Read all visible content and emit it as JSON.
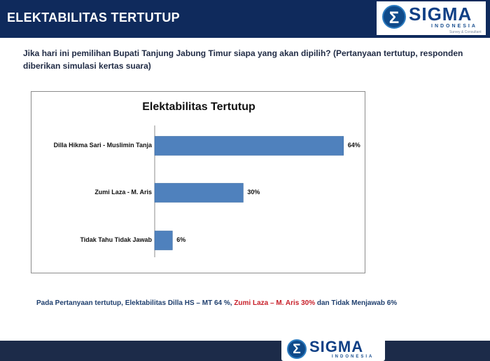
{
  "header": {
    "title": "ELEKTABILITAS TERTUTUP",
    "logo": {
      "mark": "Σ",
      "word": "SIGMA",
      "sub": "INDONESIA",
      "tagline": "Survey & Consultant"
    }
  },
  "question": "Jika hari ini pemilihan Bupati Tanjung Jabung Timur siapa yang akan dipilih? (Pertanyaan tertutup, responden diberikan simulasi kertas suara)",
  "chart_data": {
    "type": "bar",
    "orientation": "horizontal",
    "title": "Elektabilitas Tertutup",
    "categories": [
      "Dilla Hikma Sari - Muslimin Tanja",
      "Zumi Laza - M. Aris",
      "Tidak Tahu Tidak Jawab"
    ],
    "values": [
      64,
      30,
      6
    ],
    "value_labels": [
      "64%",
      "30%",
      "6%"
    ],
    "unit": "%",
    "xlim": [
      0,
      70
    ],
    "grid": false,
    "bar_color": "#4f81bd"
  },
  "summary": {
    "part1": "Pada Pertanyaan tertutup, Elektabilitas Dilla HS – MT 64 %, ",
    "part2": "Zumi Laza – M. Aris 30%",
    "part3": " dan Tidak Menjawab 6%"
  },
  "footer": {
    "logo": {
      "mark": "Σ",
      "word": "SIGMA",
      "sub": "INDONESIA"
    }
  },
  "colors": {
    "header_bg": "#0f2a5c",
    "footer_bg": "#1c2b49",
    "summary_blue": "#1f3f6e",
    "summary_red": "#c8202a"
  }
}
